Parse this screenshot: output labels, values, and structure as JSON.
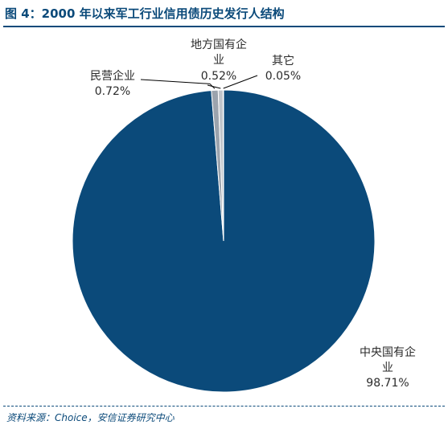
{
  "header": {
    "title": "图 4：2000 年以来军工行业信用债历史发行人结构"
  },
  "footer": {
    "source": "资料来源：Choice，安信证券研究中心"
  },
  "colors": {
    "title": "#0b4a7a",
    "central_soe": "#0b4a7a",
    "private": "#9ba3ad",
    "local_soe": "#c0c5cb",
    "other": "#7f7f7f"
  },
  "chart_data": {
    "type": "pie",
    "title": "",
    "start_angle_deg": 0,
    "direction": "clockwise",
    "slices": [
      {
        "label_lines": [
          "中央国有企",
          "业"
        ],
        "value_text": "98.71%",
        "value": 98.71,
        "color": "#0b4a7a"
      },
      {
        "label_lines": [
          "民营企业"
        ],
        "value_text": "0.72%",
        "value": 0.72,
        "color": "#9ba3ad"
      },
      {
        "label_lines": [
          "地方国有企",
          "业"
        ],
        "value_text": "0.52%",
        "value": 0.52,
        "color": "#c0c5cb"
      },
      {
        "label_lines": [
          "其它"
        ],
        "value_text": "0.05%",
        "value": 0.05,
        "color": "#7f7f7f"
      }
    ]
  }
}
